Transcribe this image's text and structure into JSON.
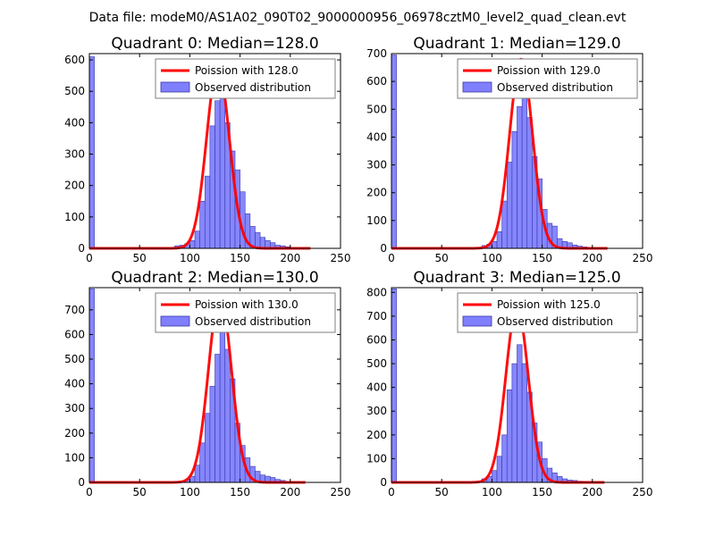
{
  "figure_title": "Data file: modeM0/AS1A02_090T02_9000000956_06978cztM0_level2_quad_clean.evt",
  "colors": {
    "bar_fill": "#8080ff",
    "bar_edge": "#3838a8",
    "fit_line": "#ff0000",
    "axes": "#000000",
    "legend_edge": "#7f7f7f"
  },
  "chart_data": [
    {
      "type": "bar",
      "title": "Quadrant 0: Median=128.0",
      "xlabel": "",
      "ylabel": "",
      "xlim": [
        0,
        250
      ],
      "ylim": [
        0,
        620
      ],
      "xticks": [
        0,
        50,
        100,
        150,
        200,
        250
      ],
      "yticks": [
        0,
        100,
        200,
        300,
        400,
        500,
        600
      ],
      "legend_position": "top-right",
      "legend": [
        "Poission with 128.0",
        "Observed distribution"
      ],
      "bin_width": 5,
      "histogram": [
        {
          "x": 0,
          "y": 610
        },
        {
          "x": 85,
          "y": 8
        },
        {
          "x": 90,
          "y": 10
        },
        {
          "x": 95,
          "y": 15
        },
        {
          "x": 100,
          "y": 25
        },
        {
          "x": 105,
          "y": 55
        },
        {
          "x": 110,
          "y": 150
        },
        {
          "x": 115,
          "y": 230
        },
        {
          "x": 120,
          "y": 390
        },
        {
          "x": 125,
          "y": 470
        },
        {
          "x": 130,
          "y": 510
        },
        {
          "x": 135,
          "y": 400
        },
        {
          "x": 140,
          "y": 310
        },
        {
          "x": 145,
          "y": 250
        },
        {
          "x": 150,
          "y": 180
        },
        {
          "x": 155,
          "y": 110
        },
        {
          "x": 160,
          "y": 70
        },
        {
          "x": 165,
          "y": 50
        },
        {
          "x": 170,
          "y": 35
        },
        {
          "x": 175,
          "y": 25
        },
        {
          "x": 180,
          "y": 18
        },
        {
          "x": 185,
          "y": 10
        },
        {
          "x": 190,
          "y": 8
        },
        {
          "x": 195,
          "y": 5
        }
      ],
      "poisson_lambda": 128.0,
      "poisson_peak": 580,
      "fit_range": [
        0,
        220
      ]
    },
    {
      "type": "bar",
      "title": "Quadrant 1: Median=129.0",
      "xlabel": "",
      "ylabel": "",
      "xlim": [
        0,
        250
      ],
      "ylim": [
        0,
        700
      ],
      "xticks": [
        0,
        50,
        100,
        150,
        200,
        250
      ],
      "yticks": [
        0,
        100,
        200,
        300,
        400,
        500,
        600,
        700
      ],
      "legend_position": "top-right",
      "legend": [
        "Poission with 129.0",
        "Observed distribution"
      ],
      "bin_width": 5,
      "histogram": [
        {
          "x": 0,
          "y": 695
        },
        {
          "x": 90,
          "y": 10
        },
        {
          "x": 95,
          "y": 15
        },
        {
          "x": 100,
          "y": 25
        },
        {
          "x": 105,
          "y": 60
        },
        {
          "x": 110,
          "y": 170
        },
        {
          "x": 115,
          "y": 310
        },
        {
          "x": 120,
          "y": 420
        },
        {
          "x": 125,
          "y": 510
        },
        {
          "x": 130,
          "y": 560
        },
        {
          "x": 135,
          "y": 470
        },
        {
          "x": 140,
          "y": 330
        },
        {
          "x": 145,
          "y": 250
        },
        {
          "x": 150,
          "y": 140
        },
        {
          "x": 155,
          "y": 90
        },
        {
          "x": 160,
          "y": 80
        },
        {
          "x": 165,
          "y": 35
        },
        {
          "x": 170,
          "y": 25
        },
        {
          "x": 175,
          "y": 20
        },
        {
          "x": 180,
          "y": 12
        },
        {
          "x": 185,
          "y": 8
        },
        {
          "x": 190,
          "y": 5
        }
      ],
      "poisson_lambda": 129.0,
      "poisson_peak": 680,
      "fit_range": [
        0,
        215
      ]
    },
    {
      "type": "bar",
      "title": "Quadrant 2: Median=130.0",
      "xlabel": "",
      "ylabel": "",
      "xlim": [
        0,
        250
      ],
      "ylim": [
        0,
        790
      ],
      "xticks": [
        0,
        50,
        100,
        150,
        200,
        250
      ],
      "yticks": [
        0,
        100,
        200,
        300,
        400,
        500,
        600,
        700
      ],
      "legend_position": "top-right",
      "legend": [
        "Poission with 130.0",
        "Observed distribution"
      ],
      "bin_width": 5,
      "histogram": [
        {
          "x": 0,
          "y": 785
        },
        {
          "x": 95,
          "y": 10
        },
        {
          "x": 100,
          "y": 25
        },
        {
          "x": 105,
          "y": 70
        },
        {
          "x": 110,
          "y": 160
        },
        {
          "x": 115,
          "y": 280
        },
        {
          "x": 120,
          "y": 390
        },
        {
          "x": 125,
          "y": 520
        },
        {
          "x": 130,
          "y": 650
        },
        {
          "x": 135,
          "y": 540
        },
        {
          "x": 140,
          "y": 420
        },
        {
          "x": 145,
          "y": 240
        },
        {
          "x": 150,
          "y": 150
        },
        {
          "x": 155,
          "y": 100
        },
        {
          "x": 160,
          "y": 65
        },
        {
          "x": 165,
          "y": 45
        },
        {
          "x": 170,
          "y": 30
        },
        {
          "x": 175,
          "y": 25
        },
        {
          "x": 180,
          "y": 20
        },
        {
          "x": 185,
          "y": 12
        },
        {
          "x": 190,
          "y": 8
        }
      ],
      "poisson_lambda": 130.0,
      "poisson_peak": 760,
      "fit_range": [
        0,
        215
      ]
    },
    {
      "type": "bar",
      "title": "Quadrant 3: Median=125.0",
      "xlabel": "",
      "ylabel": "",
      "xlim": [
        0,
        250
      ],
      "ylim": [
        0,
        820
      ],
      "xticks": [
        0,
        50,
        100,
        150,
        200,
        250
      ],
      "yticks": [
        0,
        100,
        200,
        300,
        400,
        500,
        600,
        700,
        800
      ],
      "legend_position": "top-right",
      "legend": [
        "Poission with 125.0",
        "Observed distribution"
      ],
      "bin_width": 5,
      "histogram": [
        {
          "x": 0,
          "y": 815
        },
        {
          "x": 90,
          "y": 15
        },
        {
          "x": 95,
          "y": 25
        },
        {
          "x": 100,
          "y": 50
        },
        {
          "x": 105,
          "y": 110
        },
        {
          "x": 110,
          "y": 200
        },
        {
          "x": 115,
          "y": 390
        },
        {
          "x": 120,
          "y": 500
        },
        {
          "x": 125,
          "y": 580
        },
        {
          "x": 130,
          "y": 500
        },
        {
          "x": 135,
          "y": 380
        },
        {
          "x": 140,
          "y": 250
        },
        {
          "x": 145,
          "y": 170
        },
        {
          "x": 150,
          "y": 100
        },
        {
          "x": 155,
          "y": 60
        },
        {
          "x": 160,
          "y": 40
        },
        {
          "x": 165,
          "y": 25
        },
        {
          "x": 170,
          "y": 15
        },
        {
          "x": 175,
          "y": 10
        },
        {
          "x": 180,
          "y": 8
        },
        {
          "x": 185,
          "y": 5
        }
      ],
      "poisson_lambda": 125.0,
      "poisson_peak": 740,
      "fit_range": [
        0,
        212
      ]
    }
  ]
}
